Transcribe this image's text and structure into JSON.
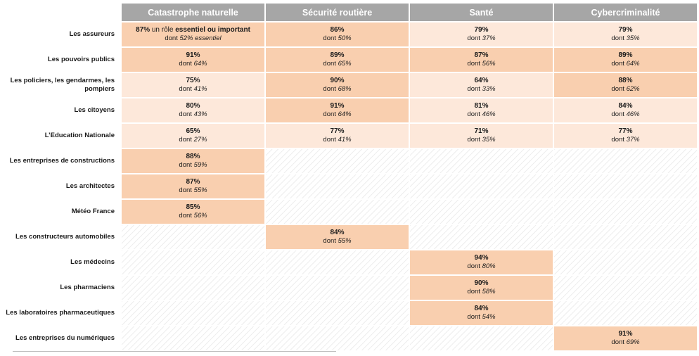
{
  "chart_data": {
    "type": "table",
    "columns": [
      "Catastrophe naturelle",
      "Sécurité routière",
      "Santé",
      "Cybercriminalité"
    ],
    "high_color": "#f9cfaf",
    "low_color": "#fde8da",
    "header_color": "#a6a6a6",
    "sub_prefix": "dont",
    "rows": [
      {
        "label": "Les assureurs",
        "cells": [
          {
            "pct": "87%",
            "note": "un rôle",
            "note_bold": "essentiel ou important",
            "sub": "52% essentiel",
            "level": "high"
          },
          {
            "pct": "86%",
            "sub": "50%",
            "level": "high"
          },
          {
            "pct": "79%",
            "sub": "37%",
            "level": "low"
          },
          {
            "pct": "79%",
            "sub": "35%",
            "level": "low"
          }
        ]
      },
      {
        "label": "Les pouvoirs publics",
        "cells": [
          {
            "pct": "91%",
            "sub": "64%",
            "level": "high"
          },
          {
            "pct": "89%",
            "sub": "65%",
            "level": "high"
          },
          {
            "pct": "87%",
            "sub": "56%",
            "level": "high"
          },
          {
            "pct": "89%",
            "sub": "64%",
            "level": "high"
          }
        ]
      },
      {
        "label": "Les policiers, les gendarmes, les pompiers",
        "cells": [
          {
            "pct": "75%",
            "sub": "41%",
            "level": "low"
          },
          {
            "pct": "90%",
            "sub": "68%",
            "level": "high"
          },
          {
            "pct": "64%",
            "sub": "33%",
            "level": "low"
          },
          {
            "pct": "88%",
            "sub": "62%",
            "level": "high"
          }
        ]
      },
      {
        "label": "Les citoyens",
        "cells": [
          {
            "pct": "80%",
            "sub": "43%",
            "level": "low"
          },
          {
            "pct": "91%",
            "sub": "64%",
            "level": "high"
          },
          {
            "pct": "81%",
            "sub": "46%",
            "level": "low"
          },
          {
            "pct": "84%",
            "sub": "46%",
            "level": "low"
          }
        ]
      },
      {
        "label": "L’Education Nationale",
        "cells": [
          {
            "pct": "65%",
            "sub": "27%",
            "level": "low"
          },
          {
            "pct": "77%",
            "sub": "41%",
            "level": "low"
          },
          {
            "pct": "71%",
            "sub": "35%",
            "level": "low"
          },
          {
            "pct": "77%",
            "sub": "37%",
            "level": "low"
          }
        ]
      },
      {
        "label": "Les entreprises de constructions",
        "cells": [
          {
            "pct": "88%",
            "sub": "59%",
            "level": "high"
          },
          null,
          null,
          null
        ]
      },
      {
        "label": "Les architectes",
        "cells": [
          {
            "pct": "87%",
            "sub": "55%",
            "level": "high"
          },
          null,
          null,
          null
        ]
      },
      {
        "label": "Météo France",
        "cells": [
          {
            "pct": "85%",
            "sub": "56%",
            "level": "high"
          },
          null,
          null,
          null
        ]
      },
      {
        "label": "Les constructeurs automobiles",
        "cells": [
          null,
          {
            "pct": "84%",
            "sub": "55%",
            "level": "high"
          },
          null,
          null
        ]
      },
      {
        "label": "Les médecins",
        "cells": [
          null,
          null,
          {
            "pct": "94%",
            "sub": "80%",
            "level": "high"
          },
          null
        ]
      },
      {
        "label": "Les pharmaciens",
        "cells": [
          null,
          null,
          {
            "pct": "90%",
            "sub": "58%",
            "level": "high"
          },
          null
        ]
      },
      {
        "label": "Les laboratoires pharmaceutiques",
        "cells": [
          null,
          null,
          {
            "pct": "84%",
            "sub": "54%",
            "level": "high"
          },
          null
        ]
      },
      {
        "label": "Les entreprises du numériques",
        "cells": [
          null,
          null,
          null,
          {
            "pct": "91%",
            "sub": "69%",
            "level": "high"
          }
        ]
      }
    ]
  }
}
